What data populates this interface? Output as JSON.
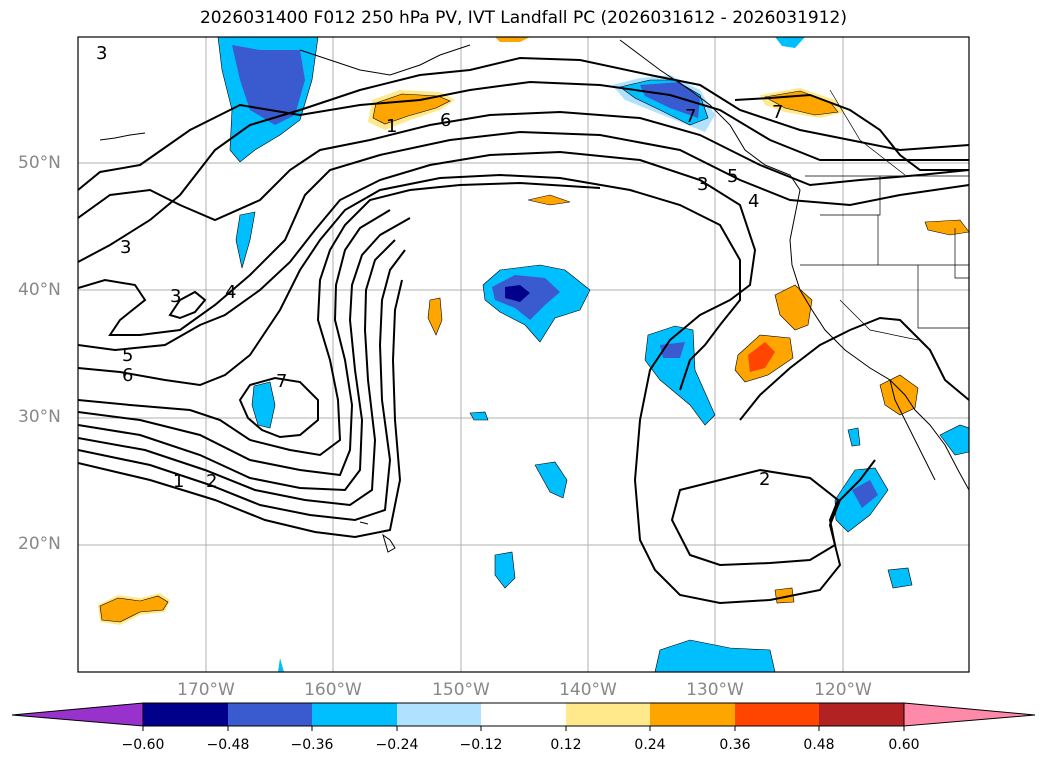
{
  "title": "2026031400 F012 250 hPa PV, IVT Landfall PC (2026031612 - 2026031912)",
  "lat_labels": [
    "50°N",
    "40°N",
    "30°N",
    "20°N"
  ],
  "lon_labels": [
    "170°W",
    "160°W",
    "150°W",
    "140°W",
    "130°W",
    "120°W"
  ],
  "colorbar": {
    "ticks": [
      "−0.60",
      "−0.48",
      "−0.36",
      "−0.24",
      "−0.12",
      "0.12",
      "0.24",
      "0.36",
      "0.48",
      "0.60"
    ],
    "colors": [
      "#9932cc",
      "#00008b",
      "#3a5bcf",
      "#00bfff",
      "#b0e2ff",
      "#ffffff",
      "#ffe98a",
      "#ffa500",
      "#ff4500",
      "#b22222",
      "#ff89a8"
    ]
  },
  "contour_labels": {
    "c3_topleft": "3",
    "c6_top": "6",
    "c1_top": "1",
    "c7_alaska": "7",
    "c7_canada": "7",
    "c3_bc": "3",
    "c5_bc": "5",
    "c4_bc": "4",
    "c3_west1": "3",
    "c3_west2": "3",
    "c4_west": "4",
    "c5_west": "5",
    "c6_west": "6",
    "c7_low": "7",
    "c1_south": "1",
    "c2_south": "2",
    "c2_east": "2"
  }
}
